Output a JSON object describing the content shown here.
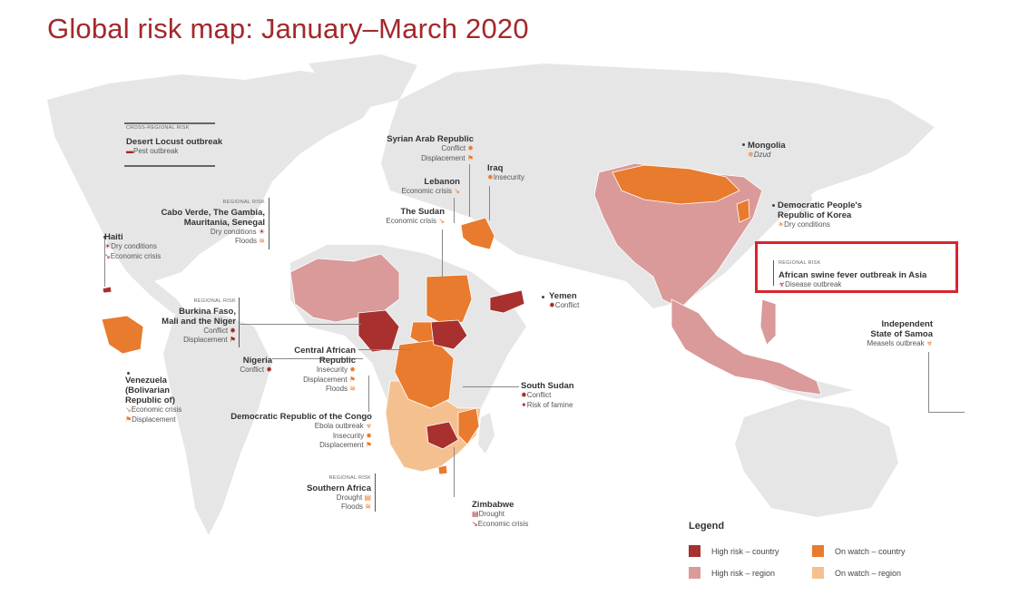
{
  "title": "Global risk map: January–March 2020",
  "colors": {
    "high_risk_country": "#a8302f",
    "high_risk_region": "#d99a99",
    "on_watch_country": "#e87b2d",
    "on_watch_region": "#f5c08f",
    "land": "#e6e6e6",
    "highlight": "#d9252e"
  },
  "labels": {
    "locust": {
      "tag": "CROSS-REGIONAL RISK",
      "name": "Desert Locust outbreak",
      "risks": [
        "Pest outbreak"
      ]
    },
    "syria": {
      "name": "Syrian Arab Republic",
      "risks": [
        "Conflict",
        "Displacement"
      ]
    },
    "iraq": {
      "name": "Iraq",
      "risks": [
        "Insecurity"
      ]
    },
    "lebanon": {
      "name": "Lebanon",
      "risks": [
        "Economic crisis"
      ]
    },
    "sudan": {
      "name": "The Sudan",
      "risks": [
        "Economic crisis"
      ]
    },
    "mongolia": {
      "name": "Mongolia",
      "risks": [
        "Dzud"
      ]
    },
    "dprk": {
      "name_line1": "Democratic People's",
      "name_line2": "Republic of Korea",
      "risks": [
        "Dry conditions"
      ]
    },
    "swine": {
      "tag": "REGIONAL RISK",
      "name": "African swine fever outbreak in Asia",
      "risks": [
        "Disease outbreak"
      ]
    },
    "cabo": {
      "tag": "REGIONAL RISK",
      "name_line1": "Cabo Verde, The Gambia,",
      "name_line2": "Mauritania, Senegal",
      "risks": [
        "Dry conditions",
        "Floods"
      ]
    },
    "haiti": {
      "name": "Haiti",
      "risks": [
        "Dry conditions",
        "Economic crisis"
      ]
    },
    "burkina": {
      "tag": "REGIONAL RISK",
      "name_line1": "Burkina Faso,",
      "name_line2": "Mali and the Niger",
      "risks": [
        "Conflict",
        "Displacement"
      ]
    },
    "yemen": {
      "name": "Yemen",
      "risks": [
        "Conflict"
      ]
    },
    "samoa": {
      "name_line1": "Independent",
      "name_line2": "State of Samoa",
      "risks": [
        "Measels outbreak"
      ]
    },
    "nigeria": {
      "name": "Nigeria",
      "risks": [
        "Conflict"
      ]
    },
    "car": {
      "name_line1": "Central African",
      "name_line2": "Republic",
      "risks": [
        "Insecurity",
        "Displacement",
        "Floods"
      ]
    },
    "venezuela": {
      "name_line1": "Venezuela",
      "name_line2": "(Bolivarian",
      "name_line3": "Republic of)",
      "risks": [
        "Economic crisis",
        "Displacement"
      ]
    },
    "south_sudan": {
      "name": "South Sudan",
      "risks": [
        "Conflict",
        "Risk of famine"
      ]
    },
    "drc": {
      "name": "Democratic Republic of the Congo",
      "risks": [
        "Ebola outbreak",
        "Insecurity",
        "Displacement"
      ]
    },
    "southern_africa": {
      "tag": "REGIONAL RISK",
      "name": "Southern Africa",
      "risks": [
        "Drought",
        "Floods"
      ]
    },
    "zimbabwe": {
      "name": "Zimbabwe",
      "risks": [
        "Drought",
        "Economic crisis"
      ]
    }
  },
  "legend": {
    "title": "Legend",
    "items": [
      {
        "label": "High risk – country",
        "color": "#a8302f"
      },
      {
        "label": "On watch – country",
        "color": "#e87b2d"
      },
      {
        "label": "High risk – region",
        "color": "#d99a99"
      },
      {
        "label": "On watch – region",
        "color": "#f5c08f"
      }
    ]
  }
}
